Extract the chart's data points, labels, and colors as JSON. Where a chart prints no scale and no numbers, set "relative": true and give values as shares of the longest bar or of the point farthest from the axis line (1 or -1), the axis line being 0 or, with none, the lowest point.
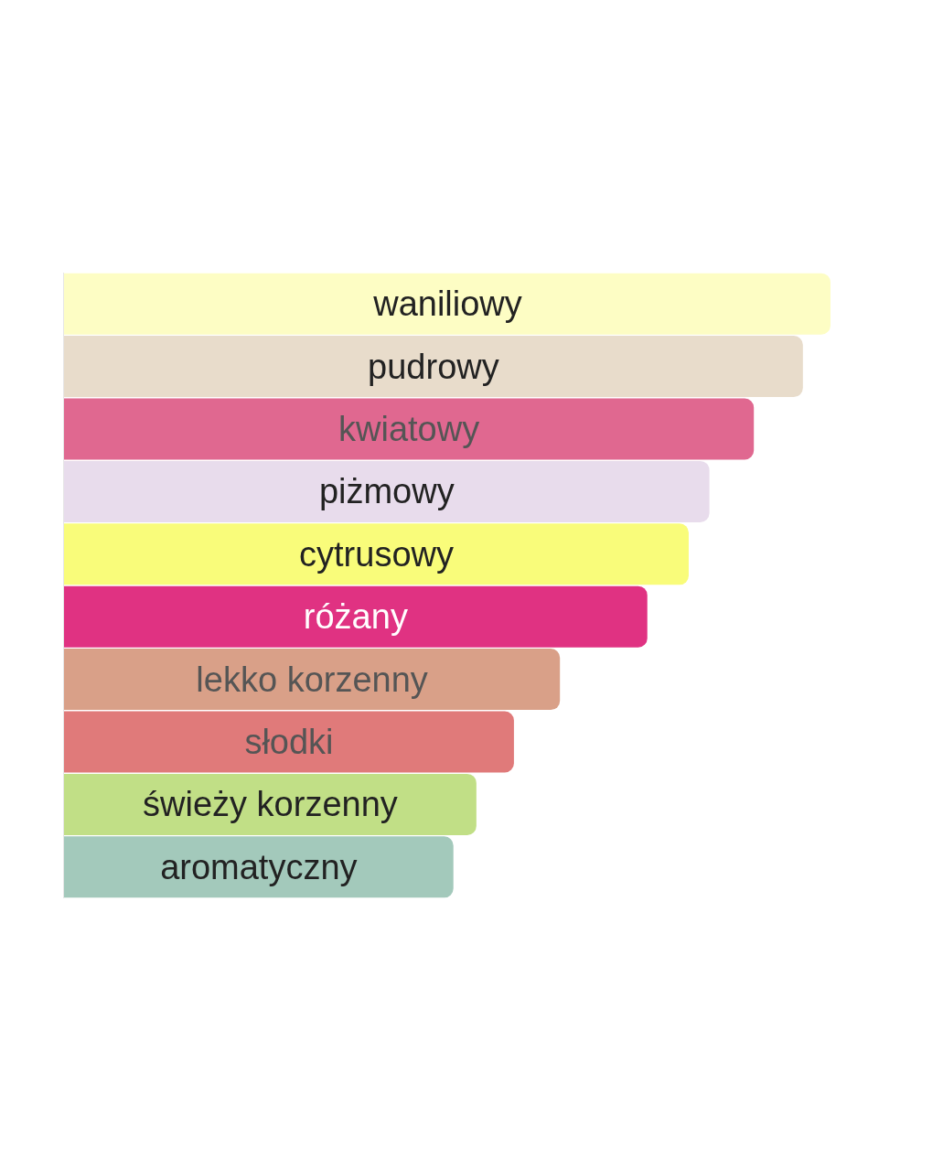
{
  "chart_data": {
    "type": "bar",
    "orientation": "horizontal",
    "relative": true,
    "tick_labels": false,
    "legend": false,
    "categories": [
      "waniliowy",
      "pudrowy",
      "kwiatowy",
      "piżmowy",
      "cytrusowy",
      "różany",
      "lekko korzenny",
      "słodki",
      "świeży korzenny",
      "aromatyczny"
    ],
    "values": [
      1,
      0.964,
      0.9,
      0.842,
      0.815,
      0.761,
      0.647,
      0.587,
      0.538,
      0.508
    ],
    "colors": [
      "#fdfdc4",
      "#e8dccb",
      "#e06890",
      "#e8dcec",
      "#f9fc7a",
      "#e03282",
      "#d9a088",
      "#e07a7a",
      "#c1df86",
      "#a3c9bb"
    ]
  }
}
